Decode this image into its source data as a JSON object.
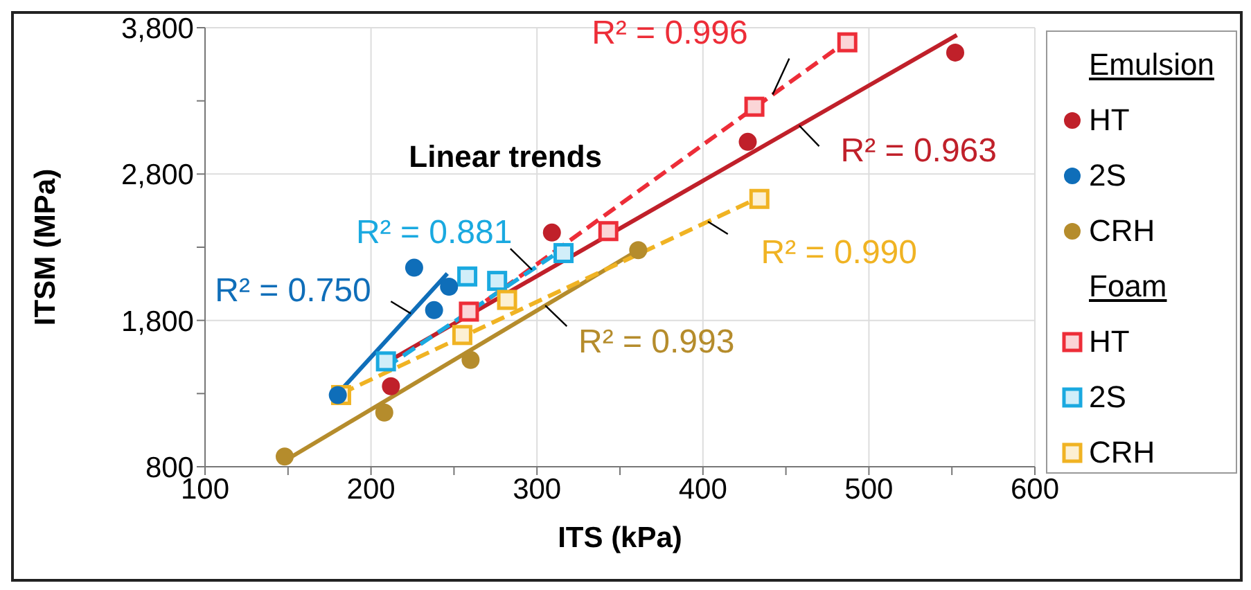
{
  "chart_data": {
    "type": "scatter",
    "xlabel": "ITS (kPa)",
    "ylabel": "ITSM (MPa)",
    "xlim": [
      100,
      600
    ],
    "xticks": [
      100,
      {
        "value": 150,
        "label": null
      },
      200,
      {
        "value": 250,
        "label": null
      },
      300,
      {
        "value": 350,
        "label": null
      },
      400,
      {
        "value": 450,
        "label": null
      },
      500,
      {
        "value": 550,
        "label": null
      },
      600
    ],
    "ylim": [
      800,
      3800
    ],
    "yticks": [
      800,
      {
        "value": 1300,
        "label": null
      },
      {
        "value": 1800,
        "label": "1,800"
      },
      {
        "value": 2300,
        "label": null
      },
      {
        "value": 2800,
        "label": "2,800"
      },
      {
        "value": 3300,
        "label": null
      },
      {
        "value": 3800,
        "label": "3,800"
      }
    ],
    "grid": true,
    "legend": "right",
    "series": [
      {
        "name": "HT",
        "type": "scatter",
        "marker": "circle",
        "color": "#c0202a",
        "x": [
          212,
          309,
          427,
          552
        ],
        "values": [
          1350,
          2400,
          3020,
          3630
        ]
      },
      {
        "name": "2S",
        "type": "scatter",
        "marker": "circle",
        "color": "#0f6eb9",
        "x": [
          180,
          226,
          238,
          247
        ],
        "values": [
          1290,
          2160,
          1870,
          2030
        ]
      },
      {
        "name": "CRH",
        "type": "scatter",
        "marker": "circle",
        "color": "#b58c2c",
        "x": [
          148,
          208,
          260,
          361
        ],
        "values": [
          870,
          1170,
          1530,
          2280
        ]
      },
      {
        "name": "HT",
        "type": "scatter",
        "marker": "square",
        "color": "#ed2d38",
        "x": [
          259,
          343,
          431,
          487
        ],
        "values": [
          1860,
          2410,
          3260,
          3700
        ]
      },
      {
        "name": "2S",
        "type": "scatter",
        "marker": "square",
        "color": "#1aa9e0",
        "x": [
          209,
          258,
          276,
          316
        ],
        "values": [
          1520,
          2100,
          2070,
          2260
        ]
      },
      {
        "name": "CRH",
        "type": "scatter",
        "marker": "square",
        "color": "#f0b323",
        "x": [
          182,
          255,
          282,
          434
        ],
        "values": [
          1290,
          1700,
          1940,
          2630
        ]
      },
      {
        "name": "R² = 0.963",
        "type": "line",
        "line_style": "solid",
        "color": "#c0202a",
        "x": [
          212,
          553
        ],
        "values": [
          1530,
          3750
        ]
      },
      {
        "name": "R² = 0.750",
        "type": "line",
        "line_style": "solid",
        "color": "#0f6eb9",
        "x": [
          180,
          246
        ],
        "values": [
          1300,
          2120
        ]
      },
      {
        "name": "R² = 0.993",
        "type": "line",
        "line_style": "solid",
        "color": "#b58c2c",
        "x": [
          148,
          361
        ],
        "values": [
          840,
          2280
        ]
      },
      {
        "name": "R² = 0.996",
        "type": "line",
        "line_style": "dashed",
        "color": "#ed2d38",
        "x": [
          259,
          487
        ],
        "values": [
          1850,
          3710
        ]
      },
      {
        "name": "R² = 0.881",
        "type": "line",
        "line_style": "dashed",
        "color": "#1aa9e0",
        "x": [
          209,
          316
        ],
        "values": [
          1480,
          2290
        ]
      },
      {
        "name": "R² = 0.990",
        "type": "line",
        "line_style": "dashed",
        "color": "#f0b323",
        "x": [
          182,
          434
        ],
        "values": [
          1300,
          2640
        ]
      }
    ],
    "annotations": [
      "Linear trends",
      "Emulsion",
      "Foam"
    ]
  }
}
